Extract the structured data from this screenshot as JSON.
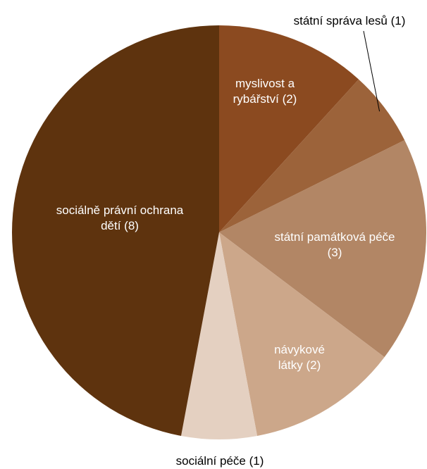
{
  "chart_data": {
    "type": "pie",
    "categories": [
      "myslivost a rybářství",
      "státní správa lesů",
      "státní památková péče",
      "návykové látky",
      "sociální péče",
      "sociálně právní ochrana dětí"
    ],
    "values": [
      2,
      1,
      3,
      2,
      1,
      8
    ],
    "value_labels": [
      "(2)",
      "(1)",
      "(3)",
      "(2)",
      "(1)",
      "(8)"
    ],
    "colors": [
      "#8b4a20",
      "#9c633a",
      "#b28665",
      "#cca78a",
      "#e4d0c1",
      "#5e330e"
    ]
  }
}
